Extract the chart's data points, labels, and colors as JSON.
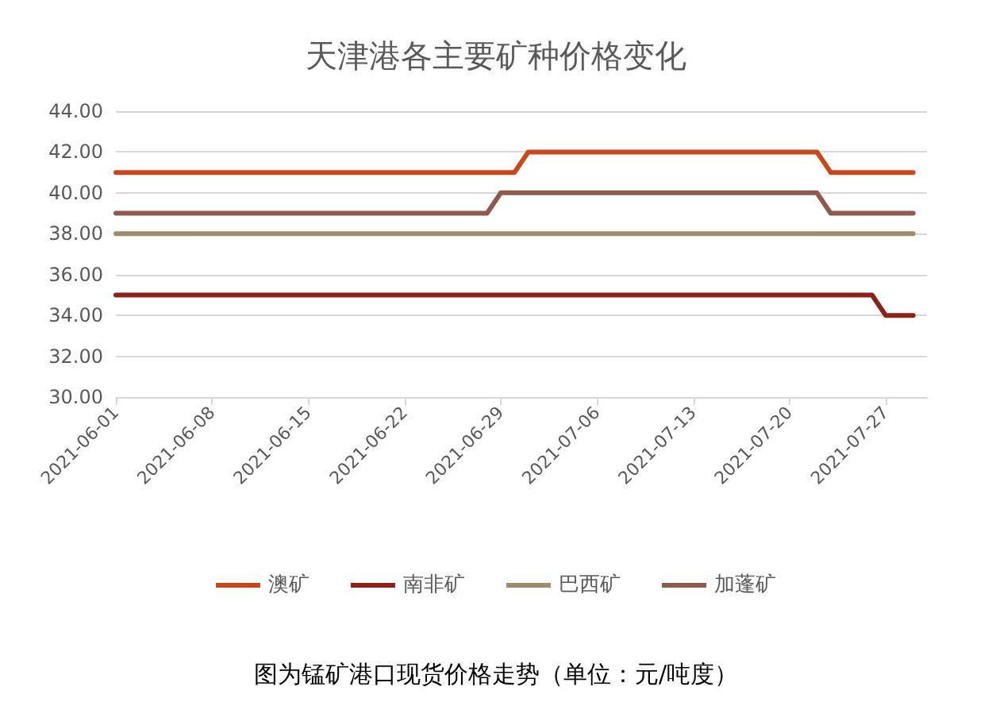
{
  "chart_data": {
    "type": "line",
    "title": "天津港各主要矿种价格变化",
    "annotations": [
      "图为锰矿港口现货价格走势（单位：元/吨度）"
    ],
    "series": [
      {
        "name": "澳矿",
        "color": "#c9471b",
        "x": [
          "2021-06-01",
          "2021-06-30",
          "2021-07-01",
          "2021-07-22",
          "2021-07-23",
          "2021-07-29"
        ],
        "values": [
          41,
          41,
          42,
          42,
          41,
          41
        ]
      },
      {
        "name": "南非矿",
        "color": "#8b2219",
        "x": [
          "2021-06-01",
          "2021-07-26",
          "2021-07-27",
          "2021-07-29"
        ],
        "values": [
          35,
          35,
          34,
          34
        ]
      },
      {
        "name": "巴西矿",
        "color": "#a08c6a",
        "x": [
          "2021-06-01",
          "2021-07-29"
        ],
        "values": [
          38,
          38
        ]
      },
      {
        "name": "加蓬矿",
        "color": "#8f5a4b",
        "x": [
          "2021-06-01",
          "2021-06-28",
          "2021-06-29",
          "2021-07-22",
          "2021-07-23",
          "2021-07-29"
        ],
        "values": [
          39,
          39,
          40,
          40,
          39,
          39
        ]
      }
    ],
    "xlim": [
      "2021-06-01",
      "2021-07-30"
    ],
    "xticks": [
      "2021-06-01",
      "2021-06-08",
      "2021-06-15",
      "2021-06-22",
      "2021-06-29",
      "2021-07-06",
      "2021-07-13",
      "2021-07-20",
      "2021-07-27"
    ],
    "ylim": [
      30,
      44
    ],
    "yticks": [
      {
        "value": 30,
        "label": "30.00"
      },
      {
        "value": 32,
        "label": "32.00"
      },
      {
        "value": 34,
        "label": "34.00"
      },
      {
        "value": 36,
        "label": "36.00"
      },
      {
        "value": 38,
        "label": "38.00"
      },
      {
        "value": 40,
        "label": "40.00"
      },
      {
        "value": 42,
        "label": "42.00"
      },
      {
        "value": 44,
        "label": "44.00"
      }
    ],
    "grid": "y",
    "legend": "bottom",
    "marker": "none",
    "line_style": "solid"
  }
}
